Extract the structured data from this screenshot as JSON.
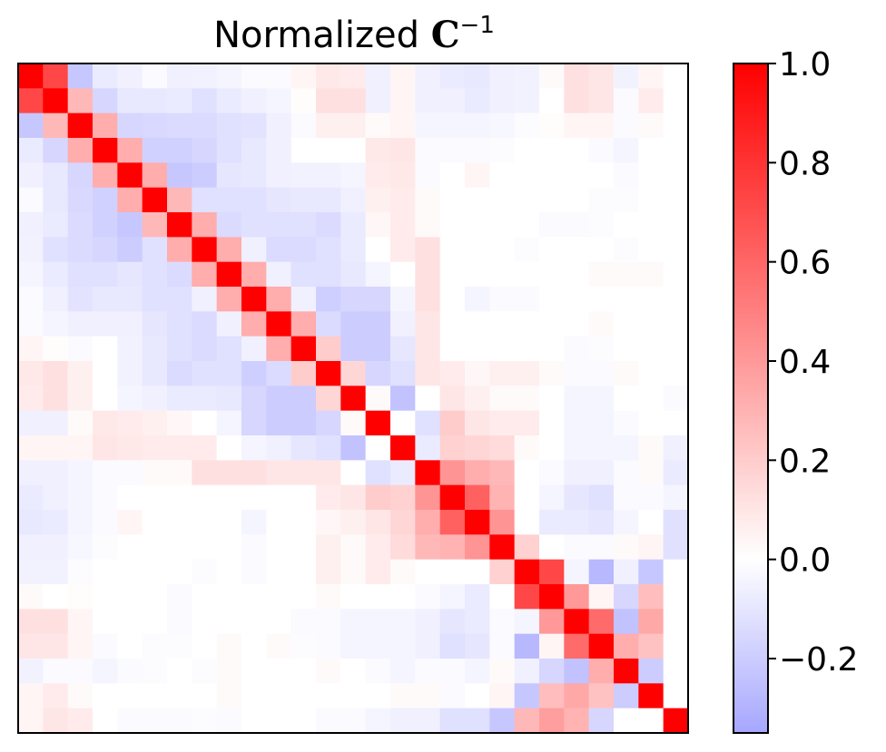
{
  "chart_data": {
    "type": "heatmap",
    "title_prefix": "Normalized ",
    "title_symbol": "C",
    "title_superscript": "−1",
    "colormap": "bwr",
    "colormap_colors": {
      "low": "#0000ff",
      "mid": "#ffffff",
      "high": "#ff0000"
    },
    "color_range": [
      -0.35,
      1.0
    ],
    "colorbar_ticks": [
      {
        "value": 1.0,
        "label": "1.0"
      },
      {
        "value": 0.8,
        "label": "0.8"
      },
      {
        "value": 0.6,
        "label": "0.6"
      },
      {
        "value": 0.4,
        "label": "0.4"
      },
      {
        "value": 0.2,
        "label": "0.2"
      },
      {
        "value": 0.0,
        "label": "0.0"
      },
      {
        "value": -0.2,
        "label": "−0.2"
      }
    ],
    "n": 27,
    "axes_ticks_visible": false,
    "matrix": [
      [
        1.0,
        0.72,
        -0.22,
        -0.08,
        -0.06,
        -0.02,
        -0.06,
        -0.05,
        -0.04,
        -0.02,
        -0.02,
        0.04,
        0.09,
        0.08,
        -0.06,
        0.04,
        -0.06,
        -0.08,
        -0.09,
        -0.06,
        -0.05,
        0.02,
        0.12,
        0.1,
        -0.05,
        0.04,
        0.0
      ],
      [
        0.72,
        1.0,
        0.28,
        -0.16,
        -0.09,
        -0.09,
        -0.08,
        -0.12,
        -0.08,
        -0.06,
        -0.04,
        0.01,
        0.12,
        0.12,
        -0.06,
        0.04,
        -0.06,
        -0.06,
        -0.08,
        -0.06,
        -0.05,
        0.0,
        0.12,
        0.1,
        -0.02,
        0.08,
        0.0
      ],
      [
        -0.22,
        0.28,
        1.0,
        0.32,
        -0.16,
        -0.15,
        -0.14,
        -0.14,
        -0.12,
        -0.11,
        -0.06,
        -0.02,
        0.06,
        0.06,
        0.02,
        0.04,
        -0.04,
        -0.04,
        -0.04,
        -0.03,
        -0.01,
        0.01,
        0.04,
        0.04,
        -0.02,
        0.02,
        0.0
      ],
      [
        -0.08,
        -0.16,
        0.32,
        1.0,
        0.32,
        -0.18,
        -0.18,
        -0.16,
        -0.12,
        -0.09,
        -0.06,
        0.0,
        0.0,
        0.0,
        0.09,
        0.1,
        -0.02,
        -0.02,
        -0.02,
        -0.01,
        0.0,
        0.0,
        0.0,
        -0.02,
        -0.04,
        0.0,
        0.0
      ],
      [
        -0.06,
        -0.09,
        -0.16,
        0.32,
        1.0,
        0.32,
        -0.22,
        -0.2,
        -0.1,
        -0.09,
        -0.06,
        -0.05,
        -0.05,
        -0.04,
        0.08,
        0.09,
        -0.02,
        0.0,
        0.04,
        0.0,
        0.0,
        0.0,
        0.0,
        0.0,
        -0.02,
        0.0,
        0.0
      ],
      [
        -0.02,
        -0.09,
        -0.15,
        -0.18,
        0.32,
        1.0,
        0.28,
        -0.12,
        -0.12,
        -0.12,
        -0.1,
        -0.09,
        -0.09,
        -0.06,
        0.06,
        0.08,
        0.02,
        0.0,
        0.0,
        0.0,
        0.0,
        0.0,
        0.0,
        -0.01,
        -0.01,
        0.0,
        0.0
      ],
      [
        -0.06,
        -0.08,
        -0.14,
        -0.18,
        -0.22,
        0.28,
        1.0,
        0.32,
        -0.14,
        -0.12,
        -0.12,
        -0.12,
        -0.14,
        -0.08,
        0.03,
        0.08,
        0.02,
        0.0,
        0.0,
        0.0,
        0.0,
        -0.02,
        -0.02,
        -0.01,
        0.0,
        0.0,
        0.0
      ],
      [
        -0.05,
        -0.12,
        -0.14,
        -0.16,
        -0.2,
        -0.12,
        0.32,
        1.0,
        0.32,
        -0.06,
        -0.14,
        -0.14,
        -0.12,
        -0.08,
        0.0,
        0.08,
        0.12,
        0.0,
        0.0,
        0.0,
        -0.01,
        0.0,
        0.0,
        0.0,
        -0.01,
        0.0,
        0.0
      ],
      [
        -0.04,
        -0.08,
        -0.12,
        -0.12,
        -0.1,
        -0.12,
        -0.14,
        0.32,
        1.0,
        0.32,
        -0.06,
        -0.12,
        -0.12,
        -0.09,
        -0.04,
        0.0,
        0.12,
        0.0,
        0.0,
        0.0,
        0.0,
        0.0,
        0.0,
        0.02,
        0.02,
        0.02,
        0.0
      ],
      [
        -0.02,
        -0.06,
        -0.11,
        -0.09,
        -0.09,
        -0.12,
        -0.12,
        -0.06,
        0.32,
        1.0,
        0.32,
        -0.06,
        -0.19,
        -0.16,
        -0.16,
        -0.04,
        0.12,
        0.0,
        -0.04,
        -0.02,
        -0.02,
        0.0,
        0.0,
        0.0,
        0.0,
        0.0,
        0.0
      ],
      [
        -0.02,
        -0.04,
        -0.06,
        -0.06,
        -0.06,
        -0.1,
        -0.12,
        -0.14,
        -0.06,
        0.32,
        1.0,
        0.32,
        -0.14,
        -0.2,
        -0.2,
        -0.06,
        0.1,
        0.0,
        0.0,
        0.0,
        0.0,
        0.0,
        0.0,
        0.02,
        0.0,
        0.0,
        0.0
      ],
      [
        0.04,
        0.01,
        -0.02,
        0.0,
        -0.05,
        -0.09,
        -0.12,
        -0.14,
        -0.12,
        -0.06,
        0.32,
        1.0,
        0.2,
        -0.2,
        -0.2,
        -0.1,
        0.1,
        0.0,
        0.0,
        0.0,
        0.0,
        0.0,
        -0.02,
        -0.01,
        0.0,
        0.0,
        0.0
      ],
      [
        0.09,
        0.12,
        0.06,
        0.0,
        -0.05,
        -0.09,
        -0.14,
        -0.12,
        -0.12,
        -0.19,
        -0.14,
        0.2,
        1.0,
        0.16,
        -0.16,
        -0.12,
        0.1,
        0.08,
        0.03,
        0.06,
        0.06,
        0.02,
        -0.02,
        -0.02,
        0.02,
        0.0,
        0.0
      ],
      [
        0.08,
        0.12,
        0.06,
        0.0,
        -0.04,
        -0.06,
        -0.08,
        -0.08,
        -0.09,
        -0.16,
        -0.2,
        -0.2,
        0.16,
        1.0,
        0.02,
        -0.24,
        0.0,
        0.1,
        0.06,
        0.02,
        0.02,
        0.0,
        -0.04,
        -0.04,
        0.0,
        0.0,
        -0.02
      ],
      [
        -0.06,
        -0.06,
        0.02,
        0.09,
        0.08,
        0.06,
        0.03,
        0.0,
        -0.04,
        -0.16,
        -0.2,
        -0.2,
        -0.16,
        0.02,
        1.0,
        0.0,
        -0.12,
        0.2,
        0.1,
        0.08,
        0.08,
        0.0,
        -0.04,
        -0.04,
        -0.02,
        0.0,
        0.0
      ],
      [
        0.04,
        0.04,
        0.04,
        0.1,
        0.09,
        0.08,
        0.08,
        0.08,
        0.0,
        -0.04,
        -0.06,
        -0.1,
        -0.12,
        -0.24,
        0.0,
        1.0,
        -0.08,
        0.18,
        0.16,
        0.14,
        0.02,
        0.0,
        -0.04,
        -0.04,
        -0.04,
        0.02,
        -0.06
      ],
      [
        -0.06,
        -0.06,
        -0.04,
        -0.02,
        -0.02,
        0.02,
        0.02,
        0.12,
        0.12,
        0.12,
        0.1,
        0.1,
        0.1,
        0.0,
        -0.12,
        -0.08,
        1.0,
        0.42,
        0.32,
        0.28,
        0.0,
        -0.02,
        -0.06,
        -0.06,
        -0.02,
        0.02,
        -0.08
      ],
      [
        -0.08,
        -0.06,
        -0.04,
        -0.02,
        0.0,
        0.0,
        0.0,
        0.0,
        0.0,
        0.0,
        0.0,
        0.0,
        0.08,
        0.1,
        0.2,
        0.18,
        0.42,
        1.0,
        0.62,
        0.3,
        0.0,
        -0.04,
        -0.1,
        -0.12,
        -0.02,
        -0.02,
        -0.04
      ],
      [
        -0.09,
        -0.08,
        -0.04,
        -0.02,
        0.04,
        0.0,
        0.0,
        0.0,
        0.0,
        -0.04,
        0.0,
        0.0,
        0.03,
        0.06,
        0.1,
        0.16,
        0.32,
        0.62,
        1.0,
        0.42,
        0.0,
        -0.08,
        -0.08,
        -0.1,
        -0.04,
        0.0,
        -0.12
      ],
      [
        -0.06,
        -0.06,
        -0.03,
        -0.01,
        0.0,
        0.0,
        0.0,
        0.0,
        0.0,
        -0.02,
        0.0,
        0.0,
        0.06,
        0.02,
        0.08,
        0.14,
        0.28,
        0.3,
        0.42,
        1.0,
        0.18,
        0.0,
        -0.02,
        -0.02,
        0.02,
        0.04,
        -0.12
      ],
      [
        -0.05,
        -0.05,
        -0.01,
        0.0,
        0.0,
        0.0,
        0.0,
        -0.01,
        0.0,
        -0.02,
        0.0,
        0.0,
        0.06,
        0.02,
        0.08,
        0.02,
        0.0,
        0.0,
        0.0,
        0.18,
        1.0,
        0.72,
        -0.04,
        -0.28,
        -0.06,
        -0.22,
        0.0
      ],
      [
        0.02,
        0.0,
        0.01,
        0.0,
        0.0,
        0.0,
        -0.02,
        0.0,
        0.0,
        0.0,
        0.0,
        0.0,
        0.02,
        0.0,
        0.0,
        0.0,
        -0.02,
        -0.04,
        -0.08,
        0.0,
        0.72,
        1.0,
        0.4,
        0.04,
        -0.16,
        0.26,
        0.0
      ],
      [
        0.12,
        0.12,
        0.04,
        0.0,
        0.0,
        0.0,
        -0.02,
        0.0,
        0.0,
        0.0,
        0.0,
        -0.02,
        -0.02,
        -0.04,
        -0.04,
        -0.04,
        -0.06,
        -0.1,
        -0.08,
        -0.02,
        -0.04,
        0.4,
        1.0,
        0.58,
        -0.24,
        0.34,
        0.0
      ],
      [
        0.1,
        0.1,
        0.04,
        -0.02,
        0.0,
        -0.01,
        -0.01,
        0.0,
        0.02,
        0.0,
        0.02,
        -0.01,
        -0.02,
        -0.04,
        -0.04,
        -0.04,
        -0.06,
        -0.12,
        -0.1,
        -0.02,
        -0.28,
        0.04,
        0.58,
        1.0,
        0.32,
        0.24,
        0.0
      ],
      [
        -0.05,
        -0.02,
        -0.02,
        -0.04,
        -0.02,
        -0.01,
        0.0,
        -0.01,
        0.02,
        0.0,
        0.0,
        0.0,
        0.02,
        0.0,
        -0.02,
        -0.04,
        -0.02,
        -0.02,
        -0.04,
        0.02,
        -0.06,
        -0.16,
        -0.24,
        0.32,
        1.0,
        -0.2,
        0.0
      ],
      [
        0.04,
        0.08,
        0.02,
        0.0,
        0.0,
        0.0,
        0.0,
        0.0,
        0.02,
        0.0,
        0.0,
        0.0,
        0.0,
        0.0,
        0.0,
        0.02,
        0.02,
        -0.02,
        0.0,
        0.04,
        -0.22,
        0.26,
        0.34,
        0.24,
        -0.2,
        1.0,
        0.0
      ],
      [
        0.04,
        0.1,
        0.08,
        0.0,
        -0.02,
        -0.02,
        -0.02,
        -0.01,
        -0.02,
        0.0,
        0.0,
        0.0,
        -0.02,
        -0.02,
        -0.04,
        -0.06,
        -0.06,
        -0.12,
        -0.12,
        -0.22,
        0.28,
        0.38,
        0.3,
        -0.16,
        0.0,
        0.0,
        1.0
      ]
    ]
  }
}
